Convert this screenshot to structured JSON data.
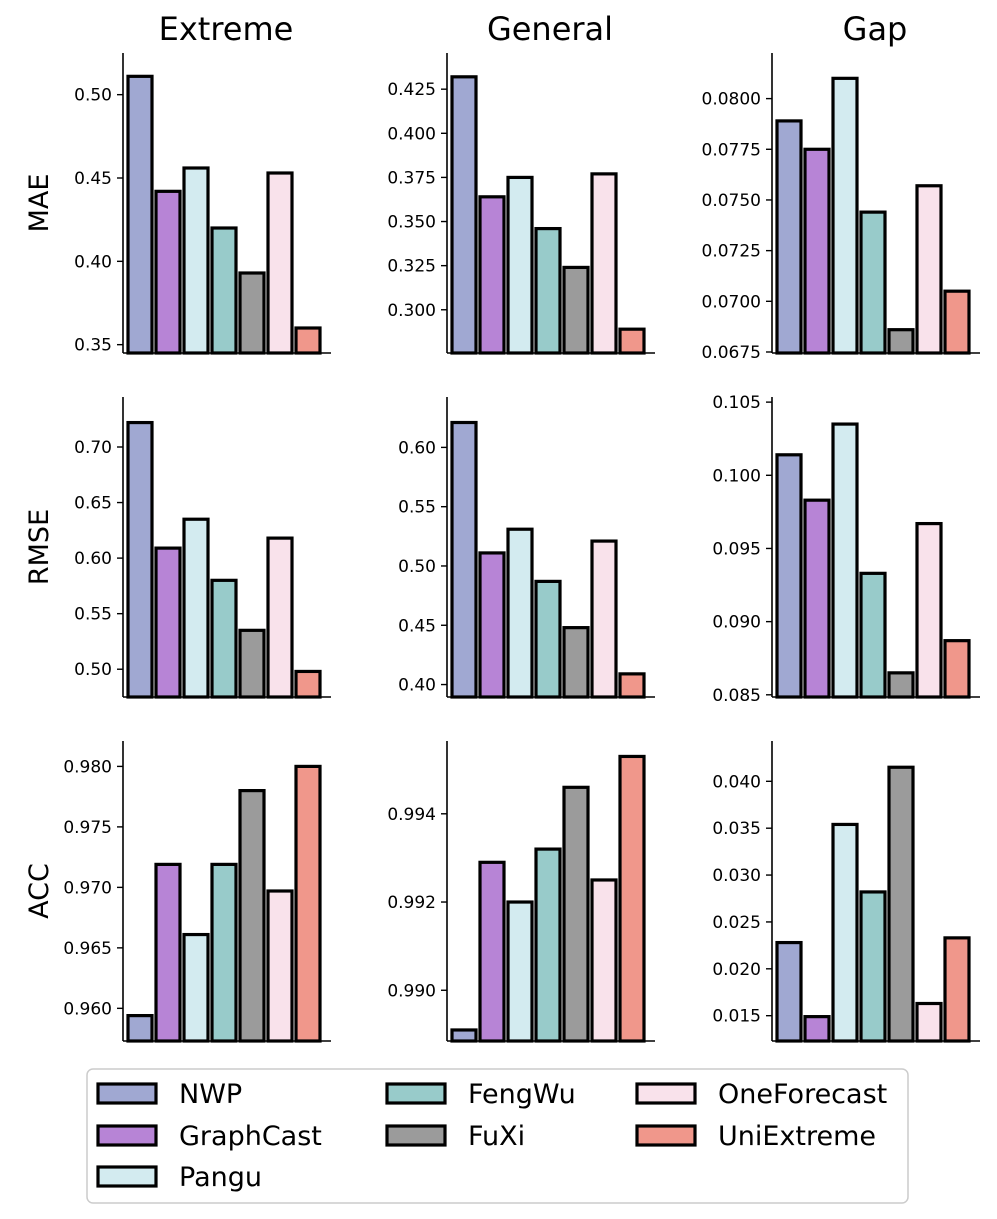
{
  "chart_data": {
    "type": "bar",
    "layout": "3x3-grid",
    "column_titles": [
      "Extreme",
      "General",
      "Gap"
    ],
    "row_labels": [
      "MAE",
      "RMSE",
      "ACC"
    ],
    "categories": [
      "NWP",
      "GraphCast",
      "Pangu",
      "FengWu",
      "FuXi",
      "OneForecast",
      "UniExtreme"
    ],
    "colors": [
      "#A0A8D2",
      "#B784D6",
      "#D3EBF0",
      "#98CBCA",
      "#9B9B9B",
      "#F9E2EB",
      "#F0978B"
    ],
    "edge_color": "#000000",
    "legend": {
      "placement": "bottom",
      "columns": [
        [
          "NWP",
          "GraphCast",
          "Pangu"
        ],
        [
          "FengWu",
          "FuXi"
        ],
        [
          "OneForecast",
          "UniExtreme"
        ]
      ]
    },
    "panels": [
      {
        "row": "MAE",
        "column": "Extreme",
        "ylim": [
          0.345,
          0.525
        ],
        "ticks": [
          0.35,
          0.4,
          0.45,
          0.5
        ],
        "tick_labels": [
          "0.35",
          "0.40",
          "0.45",
          "0.50"
        ],
        "values": [
          0.511,
          0.442,
          0.456,
          0.42,
          0.393,
          0.453,
          0.36
        ]
      },
      {
        "row": "MAE",
        "column": "General",
        "ylim": [
          0.2755,
          0.4455
        ],
        "ticks": [
          0.3,
          0.325,
          0.35,
          0.375,
          0.4,
          0.425
        ],
        "tick_labels": [
          "0.300",
          "0.325",
          "0.350",
          "0.375",
          "0.400",
          "0.425"
        ],
        "values": [
          0.432,
          0.364,
          0.375,
          0.346,
          0.324,
          0.377,
          0.289
        ]
      },
      {
        "row": "MAE",
        "column": "Gap",
        "ylim": [
          0.06745,
          0.08225
        ],
        "ticks": [
          0.0675,
          0.07,
          0.0725,
          0.075,
          0.0775,
          0.08
        ],
        "tick_labels": [
          "0.0675",
          "0.0700",
          "0.0725",
          "0.0750",
          "0.0775",
          "0.0800"
        ],
        "values": [
          0.0789,
          0.0775,
          0.081,
          0.0744,
          0.0686,
          0.0757,
          0.0705
        ]
      },
      {
        "row": "RMSE",
        "column": "Extreme",
        "ylim": [
          0.475,
          0.745
        ],
        "ticks": [
          0.5,
          0.55,
          0.6,
          0.65,
          0.7
        ],
        "tick_labels": [
          "0.50",
          "0.55",
          "0.60",
          "0.65",
          "0.70"
        ],
        "values": [
          0.722,
          0.609,
          0.635,
          0.58,
          0.535,
          0.618,
          0.498
        ]
      },
      {
        "row": "RMSE",
        "column": "General",
        "ylim": [
          0.3895,
          0.6425
        ],
        "ticks": [
          0.4,
          0.45,
          0.5,
          0.55,
          0.6
        ],
        "tick_labels": [
          "0.40",
          "0.45",
          "0.50",
          "0.55",
          "0.60"
        ],
        "values": [
          0.621,
          0.511,
          0.531,
          0.487,
          0.448,
          0.521,
          0.409
        ]
      },
      {
        "row": "RMSE",
        "column": "Gap",
        "ylim": [
          0.08485,
          0.10535
        ],
        "ticks": [
          0.085,
          0.09,
          0.095,
          0.1,
          0.105
        ],
        "tick_labels": [
          "0.085",
          "0.090",
          "0.095",
          "0.100",
          "0.105"
        ],
        "values": [
          0.1014,
          0.0983,
          0.1035,
          0.0933,
          0.0865,
          0.0967,
          0.0887
        ]
      },
      {
        "row": "ACC",
        "column": "Extreme",
        "ylim": [
          0.9573,
          0.9821
        ],
        "ticks": [
          0.96,
          0.965,
          0.97,
          0.975,
          0.98
        ],
        "tick_labels": [
          "0.960",
          "0.965",
          "0.970",
          "0.975",
          "0.980"
        ],
        "values": [
          0.9594,
          0.9719,
          0.9661,
          0.9719,
          0.978,
          0.9697,
          0.98
        ]
      },
      {
        "row": "ACC",
        "column": "General",
        "ylim": [
          0.98885,
          0.99565
        ],
        "ticks": [
          0.99,
          0.992,
          0.994
        ],
        "tick_labels": [
          "0.990",
          "0.992",
          "0.994"
        ],
        "values": [
          0.9891,
          0.9929,
          0.992,
          0.9932,
          0.9946,
          0.9925,
          0.9953
        ]
      },
      {
        "row": "ACC",
        "column": "Gap",
        "ylim": [
          0.0123,
          0.0443
        ],
        "ticks": [
          0.015,
          0.02,
          0.025,
          0.03,
          0.035,
          0.04
        ],
        "tick_labels": [
          "0.015",
          "0.020",
          "0.025",
          "0.030",
          "0.035",
          "0.040"
        ],
        "values": [
          0.0228,
          0.0149,
          0.0354,
          0.0282,
          0.0415,
          0.0163,
          0.0233
        ]
      }
    ]
  }
}
